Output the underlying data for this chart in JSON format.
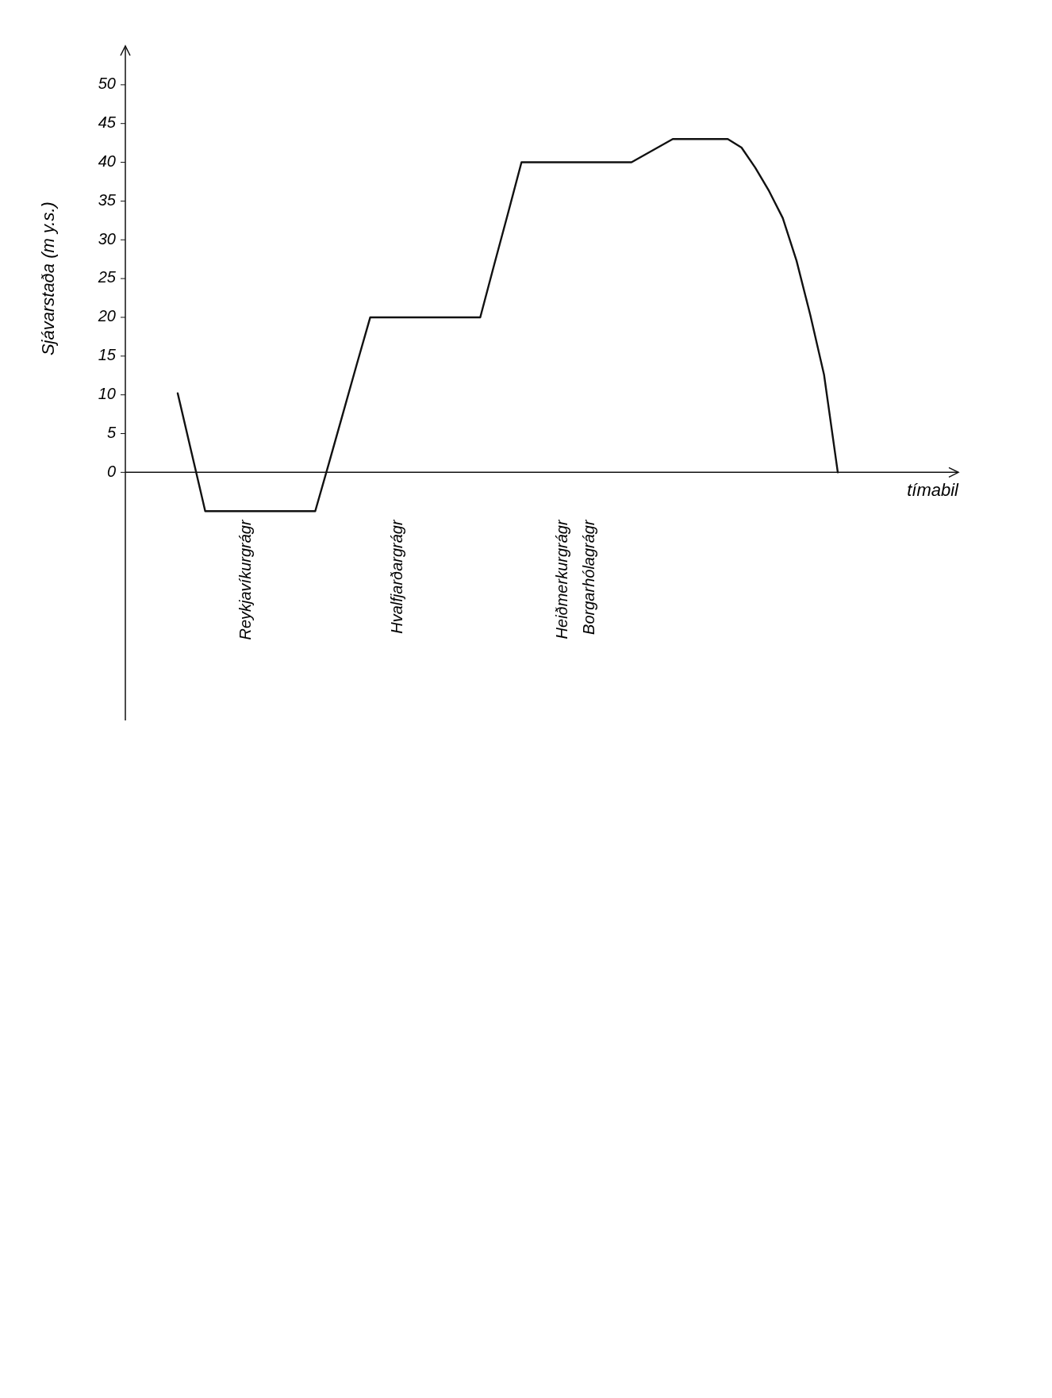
{
  "chart_data": {
    "type": "line",
    "xlabel": "tímabil",
    "ylabel": "Sjávarstaða (m y.s.)",
    "categories": [
      null,
      null,
      null,
      null,
      null,
      null,
      null,
      null,
      null,
      null,
      null,
      null,
      null,
      null,
      null,
      null,
      null,
      null,
      null,
      null,
      null,
      null,
      null,
      null,
      null,
      null,
      null,
      null,
      null,
      null,
      null,
      null,
      null,
      null,
      null,
      null,
      null,
      null,
      null,
      null,
      null,
      null,
      null,
      null,
      null,
      null,
      null,
      null,
      null
    ],
    "ylim": [
      -32,
      55
    ],
    "yticks": [
      0,
      5,
      10,
      15,
      20,
      25,
      30,
      35,
      40,
      45,
      50
    ],
    "tick_labels": "y",
    "grid": false,
    "marker": "none",
    "series": [
      {
        "color": "#111111",
        "line_style": "solid",
        "values": [
          10.2,
          2.6,
          -5,
          -5,
          -5,
          -5,
          -5,
          -5,
          -5,
          -5,
          -5,
          1.2,
          7.5,
          13.8,
          20,
          20,
          20,
          20,
          20,
          20,
          20,
          20,
          20,
          26.7,
          33.3,
          40,
          40,
          40,
          40,
          40,
          40,
          40,
          40,
          40,
          41,
          42,
          43,
          43,
          43,
          43,
          43,
          41.9,
          39.3,
          36.3,
          32.8,
          27.3,
          20.3,
          12.6,
          0
        ]
      }
    ],
    "ref_lines": [
      {
        "axis": "y",
        "value": 0,
        "color": "#111111",
        "line_style": "solid"
      }
    ],
    "annotations": [
      "Reykjavíkurgrágr",
      "Hvalfjarðargrágr",
      "Heiðmerkurgrágr",
      "Borgarhólagrágr"
    ]
  }
}
